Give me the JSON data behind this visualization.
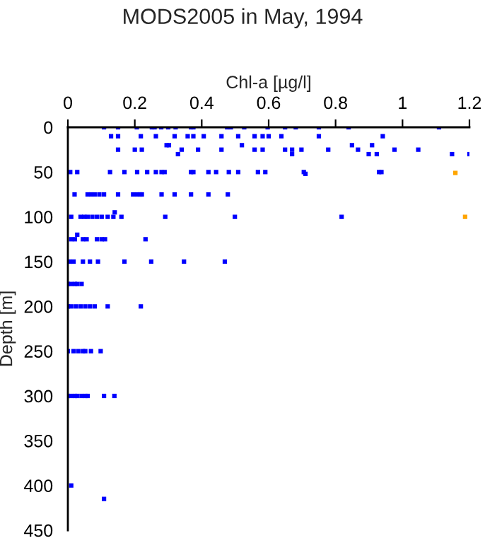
{
  "chart_data": {
    "type": "scatter",
    "title": "MODS2005 in May, 1994",
    "xlabel": "Chl-a [µg/l]",
    "ylabel": "Depth [m]",
    "xlim": [
      0,
      1.2
    ],
    "xticks": [
      0,
      0.2,
      0.4,
      0.6,
      0.8,
      1,
      1.2
    ],
    "ylim": [
      450,
      0
    ],
    "yticks": [
      0,
      50,
      100,
      150,
      200,
      250,
      300,
      350,
      400,
      450
    ],
    "grid": false,
    "legend": false,
    "marker": "square",
    "series": [
      {
        "color": "#0000ff",
        "x": [
          0.108,
          0.15,
          0.206,
          0.251,
          0.259,
          0.279,
          0.3,
          0.322,
          0.368,
          0.375,
          0.476,
          0.487,
          0.527,
          0.597,
          0.649,
          0.681,
          0.75,
          0.839,
          1.109,
          0.129,
          0.15,
          0.218,
          0.263,
          0.319,
          0.358,
          0.375,
          0.406,
          0.459,
          0.509,
          0.558,
          0.582,
          0.6,
          0.638,
          0.75,
          0.941,
          0.302,
          0.295,
          0.52,
          0.849,
          0.909,
          0.15,
          0.2,
          0.221,
          0.34,
          0.389,
          0.459,
          0.558,
          0.582,
          0.649,
          0.67,
          0.698,
          0.778,
          0.867,
          0.976,
          1.047,
          0.329,
          0.67,
          0.899,
          0.923,
          1.148,
          1.2,
          0.007,
          0.028,
          0.126,
          0.169,
          0.207,
          0.237,
          0.263,
          0.28,
          0.289,
          0.368,
          0.375,
          0.42,
          0.443,
          0.481,
          0.509,
          0.568,
          0.59,
          0.705,
          0.93,
          0.937,
          0.71,
          0.02,
          0.059,
          0.07,
          0.08,
          0.094,
          0.108,
          0.15,
          0.195,
          0.207,
          0.216,
          0.221,
          0.28,
          0.319,
          0.368,
          0.42,
          0.478,
          0.01,
          0.038,
          0.049,
          0.059,
          0.073,
          0.087,
          0.101,
          0.119,
          0.136,
          0.16,
          0.291,
          0.499,
          0.818,
          0.14,
          0.01,
          0.021,
          0.045,
          0.056,
          0.087,
          0.101,
          0.111,
          0.232,
          0.028,
          0.006,
          0.017,
          0.045,
          0.066,
          0.09,
          0.169,
          0.249,
          0.347,
          0.469,
          0,
          0.01,
          0.021,
          0.028,
          0.041,
          0,
          0.01,
          0.024,
          0.038,
          0.052,
          0.066,
          0.08,
          0.119,
          0.218,
          0,
          0.017,
          0.031,
          0.045,
          0.052,
          0.069,
          0.098,
          0,
          0.01,
          0.021,
          0.028,
          0.041,
          0.052,
          0.059,
          0.108,
          0.139,
          0.01,
          0.108
        ],
        "values": [
          0,
          0,
          0,
          0,
          0,
          0,
          0,
          0,
          0,
          0,
          0,
          0,
          0,
          0,
          0,
          0,
          0,
          0,
          0,
          10,
          10,
          10,
          10,
          10,
          10,
          10,
          10,
          10,
          10,
          10,
          10,
          10,
          10,
          10,
          10,
          20,
          20,
          20,
          20,
          20,
          25,
          25,
          25,
          25,
          25,
          25,
          25,
          25,
          25,
          25,
          25,
          25,
          25,
          25,
          25,
          30,
          30,
          30,
          30,
          30,
          30,
          50,
          50,
          50,
          50,
          50,
          50,
          50,
          50,
          50,
          50,
          50,
          50,
          50,
          50,
          50,
          50,
          50,
          50,
          50,
          50,
          52,
          75,
          75,
          75,
          75,
          75,
          75,
          75,
          75,
          75,
          75,
          75,
          75,
          75,
          75,
          75,
          75,
          100,
          100,
          100,
          100,
          100,
          100,
          100,
          100,
          100,
          100,
          100,
          100,
          100,
          95,
          125,
          125,
          125,
          125,
          125,
          125,
          125,
          125,
          120,
          150,
          150,
          150,
          150,
          150,
          150,
          150,
          150,
          150,
          175,
          175,
          175,
          175,
          175,
          200,
          200,
          200,
          200,
          200,
          200,
          200,
          200,
          200,
          250,
          250,
          250,
          250,
          250,
          250,
          250,
          300,
          300,
          300,
          300,
          300,
          300,
          300,
          300,
          300,
          400,
          415
        ]
      },
      {
        "color": "#ffa500",
        "x": [
          1.158,
          1.187
        ],
        "values": [
          51,
          100
        ]
      }
    ]
  }
}
